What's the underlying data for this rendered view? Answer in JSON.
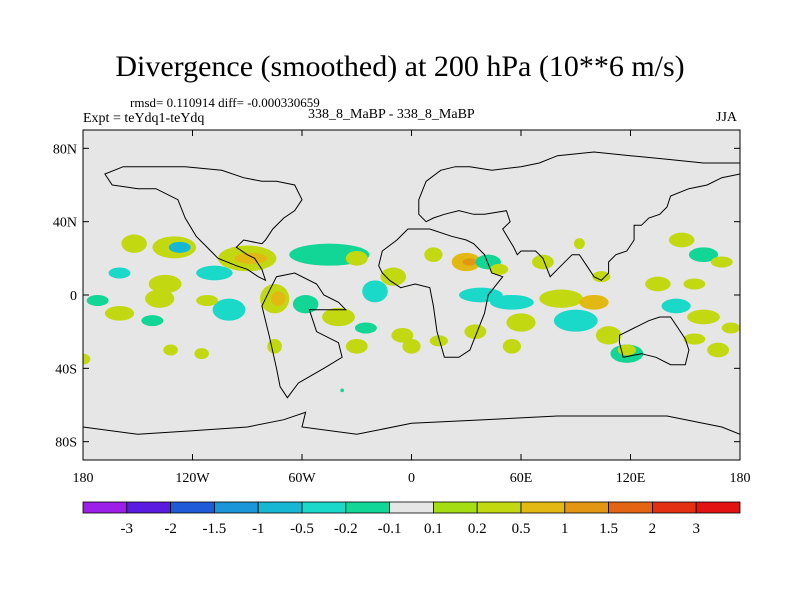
{
  "header": {
    "title": "Divergence (smoothed) at 200 hPa (10**6 m/s)",
    "stats": "rmsd= 0.110914 diff= -0.000330659",
    "experiment": "Expt = teYdq1-teYdq",
    "comparison": "338_8_MaBP - 338_8_MaBP",
    "season": "JJA"
  },
  "colors": {
    "background": "#e6e6e6",
    "coastline": "#000000",
    "levels": [
      "#9b1fe8",
      "#5b1ae0",
      "#1f5ad9",
      "#1a96d9",
      "#16b7d2",
      "#1ad9c8",
      "#12d695",
      "#e6e6e6",
      "#a4dd12",
      "#c2d912",
      "#e1b912",
      "#e39612",
      "#e36412",
      "#e33012",
      "#e31212"
    ]
  },
  "chart_data": {
    "type": "heatmap",
    "title": "Divergence (smoothed) at 200 hPa (10**6 m/s)",
    "xlabel": "",
    "ylabel": "",
    "xlim": [
      -180,
      180
    ],
    "ylim": [
      -90,
      90
    ],
    "x_ticks": [
      {
        "value": -180,
        "label": "180"
      },
      {
        "value": -120,
        "label": "120W"
      },
      {
        "value": -60,
        "label": "60W"
      },
      {
        "value": 0,
        "label": "0"
      },
      {
        "value": 60,
        "label": "60E"
      },
      {
        "value": 120,
        "label": "120E"
      },
      {
        "value": 180,
        "label": "180"
      }
    ],
    "y_ticks": [
      {
        "value": 80,
        "label": "80N"
      },
      {
        "value": 40,
        "label": "40N"
      },
      {
        "value": 0,
        "label": "0"
      },
      {
        "value": -40,
        "label": "40S"
      },
      {
        "value": -80,
        "label": "80S"
      }
    ],
    "contour_levels": [
      "-3",
      "-2",
      "-1.5",
      "-1",
      "-0.5",
      "-0.2",
      "-0.1",
      "0.1",
      "0.2",
      "0.5",
      "1",
      "1.5",
      "2",
      "3"
    ],
    "field_patches": [
      {
        "lon": -152,
        "lat": 28,
        "rlon": 7,
        "rlat": 5,
        "level": 9
      },
      {
        "lon": -130,
        "lat": 26,
        "rlon": 12,
        "rlat": 6,
        "level": 9
      },
      {
        "lon": -127,
        "lat": 26,
        "rlon": 6,
        "rlat": 3,
        "level": 4
      },
      {
        "lon": -108,
        "lat": 12,
        "rlon": 10,
        "rlat": 4,
        "level": 5
      },
      {
        "lon": -90,
        "lat": 20,
        "rlon": 16,
        "rlat": 7,
        "level": 9
      },
      {
        "lon": -88,
        "lat": 20,
        "rlon": 9,
        "rlat": 3,
        "level": 10
      },
      {
        "lon": -135,
        "lat": 6,
        "rlon": 9,
        "rlat": 5,
        "level": 9
      },
      {
        "lon": -172,
        "lat": -3,
        "rlon": 6,
        "rlat": 3,
        "level": 6
      },
      {
        "lon": -160,
        "lat": 12,
        "rlon": 6,
        "rlat": 3,
        "level": 5
      },
      {
        "lon": -160,
        "lat": -10,
        "rlon": 8,
        "rlat": 4,
        "level": 9
      },
      {
        "lon": -138,
        "lat": -2,
        "rlon": 8,
        "rlat": 5,
        "level": 9
      },
      {
        "lon": -142,
        "lat": -14,
        "rlon": 6,
        "rlat": 3,
        "level": 6
      },
      {
        "lon": -100,
        "lat": -8,
        "rlon": 9,
        "rlat": 6,
        "level": 5
      },
      {
        "lon": -112,
        "lat": -3,
        "rlon": 6,
        "rlat": 3,
        "level": 9
      },
      {
        "lon": -75,
        "lat": -2,
        "rlon": 8,
        "rlat": 8,
        "level": 9
      },
      {
        "lon": -73,
        "lat": -2,
        "rlon": 4,
        "rlat": 4,
        "level": 10
      },
      {
        "lon": -58,
        "lat": -5,
        "rlon": 7,
        "rlat": 5,
        "level": 6
      },
      {
        "lon": -45,
        "lat": 22,
        "rlon": 22,
        "rlat": 6,
        "level": 6
      },
      {
        "lon": -30,
        "lat": 20,
        "rlon": 6,
        "rlat": 4,
        "level": 9
      },
      {
        "lon": -10,
        "lat": 10,
        "rlon": 7,
        "rlat": 5,
        "level": 9
      },
      {
        "lon": -20,
        "lat": 2,
        "rlon": 7,
        "rlat": 6,
        "level": 5
      },
      {
        "lon": -40,
        "lat": -12,
        "rlon": 9,
        "rlat": 5,
        "level": 9
      },
      {
        "lon": -25,
        "lat": -18,
        "rlon": 6,
        "rlat": 3,
        "level": 6
      },
      {
        "lon": -5,
        "lat": -22,
        "rlon": 6,
        "rlat": 4,
        "level": 9
      },
      {
        "lon": -30,
        "lat": -28,
        "rlon": 6,
        "rlat": 4,
        "level": 9
      },
      {
        "lon": -180,
        "lat": -35,
        "rlon": 4,
        "rlat": 3,
        "level": 9
      },
      {
        "lon": -132,
        "lat": -30,
        "rlon": 4,
        "rlat": 3,
        "level": 9
      },
      {
        "lon": -115,
        "lat": -32,
        "rlon": 4,
        "rlat": 3,
        "level": 9
      },
      {
        "lon": -75,
        "lat": -28,
        "rlon": 4,
        "rlat": 4,
        "level": 9
      },
      {
        "lon": -38,
        "lat": -52,
        "rlon": 1,
        "rlat": 1,
        "level": 6
      },
      {
        "lon": 12,
        "lat": 22,
        "rlon": 5,
        "rlat": 4,
        "level": 9
      },
      {
        "lon": 30,
        "lat": 18,
        "rlon": 8,
        "rlat": 5,
        "level": 10
      },
      {
        "lon": 32,
        "lat": 18,
        "rlon": 4,
        "rlat": 2,
        "level": 11
      },
      {
        "lon": 42,
        "lat": 18,
        "rlon": 7,
        "rlat": 4,
        "level": 6
      },
      {
        "lon": 48,
        "lat": 14,
        "rlon": 5,
        "rlat": 3,
        "level": 9
      },
      {
        "lon": 38,
        "lat": 0,
        "rlon": 12,
        "rlat": 4,
        "level": 5
      },
      {
        "lon": 55,
        "lat": -4,
        "rlon": 12,
        "rlat": 4,
        "level": 5
      },
      {
        "lon": 82,
        "lat": -2,
        "rlon": 12,
        "rlat": 5,
        "level": 9
      },
      {
        "lon": 100,
        "lat": -4,
        "rlon": 8,
        "rlat": 4,
        "level": 10
      },
      {
        "lon": 90,
        "lat": -14,
        "rlon": 12,
        "rlat": 6,
        "level": 5
      },
      {
        "lon": 60,
        "lat": -15,
        "rlon": 8,
        "rlat": 5,
        "level": 9
      },
      {
        "lon": 35,
        "lat": -20,
        "rlon": 6,
        "rlat": 4,
        "level": 9
      },
      {
        "lon": 15,
        "lat": -25,
        "rlon": 5,
        "rlat": 3,
        "level": 9
      },
      {
        "lon": 0,
        "lat": -28,
        "rlon": 5,
        "rlat": 4,
        "level": 9
      },
      {
        "lon": 55,
        "lat": -28,
        "rlon": 5,
        "rlat": 4,
        "level": 9
      },
      {
        "lon": 72,
        "lat": 18,
        "rlon": 6,
        "rlat": 4,
        "level": 9
      },
      {
        "lon": 92,
        "lat": 28,
        "rlon": 3,
        "rlat": 3,
        "level": 9
      },
      {
        "lon": 104,
        "lat": 10,
        "rlon": 5,
        "rlat": 3,
        "level": 9
      },
      {
        "lon": 108,
        "lat": -22,
        "rlon": 7,
        "rlat": 5,
        "level": 9
      },
      {
        "lon": 118,
        "lat": -32,
        "rlon": 9,
        "rlat": 5,
        "level": 6
      },
      {
        "lon": 118,
        "lat": -30,
        "rlon": 5,
        "rlat": 3,
        "level": 9
      },
      {
        "lon": 135,
        "lat": 6,
        "rlon": 7,
        "rlat": 4,
        "level": 9
      },
      {
        "lon": 148,
        "lat": 30,
        "rlon": 7,
        "rlat": 4,
        "level": 9
      },
      {
        "lon": 160,
        "lat": 22,
        "rlon": 8,
        "rlat": 4,
        "level": 6
      },
      {
        "lon": 170,
        "lat": 18,
        "rlon": 6,
        "rlat": 3,
        "level": 9
      },
      {
        "lon": 155,
        "lat": 6,
        "rlon": 6,
        "rlat": 3,
        "level": 9
      },
      {
        "lon": 145,
        "lat": -6,
        "rlon": 8,
        "rlat": 4,
        "level": 5
      },
      {
        "lon": 160,
        "lat": -12,
        "rlon": 9,
        "rlat": 4,
        "level": 9
      },
      {
        "lon": 155,
        "lat": -24,
        "rlon": 6,
        "rlat": 3,
        "level": 9
      },
      {
        "lon": 175,
        "lat": -18,
        "rlon": 5,
        "rlat": 3,
        "level": 9
      },
      {
        "lon": 168,
        "lat": -30,
        "rlon": 6,
        "rlat": 4,
        "level": 9
      }
    ],
    "coastlines": [
      [
        [
          -56,
          -8
        ],
        [
          -52,
          -20
        ],
        [
          -40,
          -26
        ],
        [
          -38,
          -34
        ],
        [
          -48,
          -40
        ],
        [
          -62,
          -48
        ],
        [
          -68,
          -56
        ],
        [
          -72,
          -50
        ],
        [
          -74,
          -40
        ],
        [
          -78,
          -22
        ],
        [
          -82,
          -6
        ],
        [
          -78,
          2
        ],
        [
          -74,
          10
        ],
        [
          -64,
          12
        ],
        [
          -52,
          6
        ],
        [
          -48,
          0
        ],
        [
          -40,
          -4
        ],
        [
          -36,
          -8
        ]
      ],
      [
        [
          -18,
          16
        ],
        [
          -16,
          24
        ],
        [
          -8,
          30
        ],
        [
          -2,
          36
        ],
        [
          10,
          36
        ],
        [
          22,
          32
        ],
        [
          30,
          30
        ],
        [
          34,
          28
        ],
        [
          40,
          22
        ],
        [
          44,
          12
        ],
        [
          50,
          10
        ],
        [
          42,
          0
        ],
        [
          40,
          -10
        ],
        [
          36,
          -20
        ],
        [
          32,
          -30
        ],
        [
          26,
          -34
        ],
        [
          18,
          -34
        ],
        [
          14,
          -20
        ],
        [
          12,
          -6
        ],
        [
          10,
          4
        ],
        [
          2,
          6
        ],
        [
          -6,
          4
        ],
        [
          -12,
          8
        ],
        [
          -16,
          12
        ]
      ],
      [
        [
          -164,
          60
        ],
        [
          -150,
          58
        ],
        [
          -140,
          58
        ],
        [
          -128,
          52
        ],
        [
          -124,
          42
        ],
        [
          -118,
          32
        ],
        [
          -110,
          24
        ],
        [
          -106,
          20
        ],
        [
          -96,
          16
        ],
        [
          -90,
          14
        ],
        [
          -84,
          10
        ],
        [
          -80,
          8
        ],
        [
          -82,
          14
        ],
        [
          -86,
          20
        ],
        [
          -90,
          22
        ],
        [
          -96,
          26
        ],
        [
          -92,
          30
        ],
        [
          -82,
          28
        ],
        [
          -80,
          30
        ],
        [
          -76,
          36
        ],
        [
          -70,
          42
        ],
        [
          -64,
          46
        ],
        [
          -60,
          52
        ],
        [
          -64,
          60
        ],
        [
          -74,
          62
        ],
        [
          -82,
          62
        ],
        [
          -92,
          64
        ],
        [
          -104,
          68
        ],
        [
          -124,
          70
        ],
        [
          -144,
          70
        ],
        [
          -158,
          70
        ],
        [
          -168,
          66
        ]
      ],
      [
        [
          8,
          40
        ],
        [
          12,
          42
        ],
        [
          18,
          44
        ],
        [
          26,
          46
        ],
        [
          34,
          44
        ],
        [
          40,
          44
        ],
        [
          52,
          46
        ],
        [
          54,
          40
        ],
        [
          50,
          36
        ],
        [
          56,
          26
        ],
        [
          58,
          22
        ],
        [
          60,
          24
        ],
        [
          68,
          24
        ],
        [
          72,
          20
        ],
        [
          76,
          10
        ],
        [
          80,
          14
        ],
        [
          82,
          16
        ],
        [
          88,
          22
        ],
        [
          92,
          22
        ],
        [
          96,
          16
        ],
        [
          100,
          10
        ],
        [
          104,
          8
        ],
        [
          108,
          12
        ],
        [
          108,
          18
        ],
        [
          112,
          22
        ],
        [
          118,
          24
        ],
        [
          122,
          30
        ],
        [
          122,
          38
        ],
        [
          126,
          38
        ],
        [
          130,
          42
        ],
        [
          136,
          44
        ],
        [
          140,
          48
        ],
        [
          142,
          54
        ],
        [
          152,
          58
        ],
        [
          162,
          60
        ],
        [
          170,
          64
        ],
        [
          180,
          66
        ],
        [
          180,
          72
        ],
        [
          160,
          72
        ],
        [
          140,
          74
        ],
        [
          120,
          76
        ],
        [
          100,
          78
        ],
        [
          80,
          76
        ],
        [
          70,
          72
        ],
        [
          60,
          70
        ],
        [
          44,
          68
        ],
        [
          32,
          70
        ],
        [
          24,
          70
        ],
        [
          16,
          68
        ],
        [
          8,
          62
        ],
        [
          4,
          52
        ],
        [
          4,
          44
        ]
      ],
      [
        [
          114,
          -22
        ],
        [
          122,
          -18
        ],
        [
          130,
          -14
        ],
        [
          136,
          -12
        ],
        [
          142,
          -12
        ],
        [
          146,
          -18
        ],
        [
          150,
          -24
        ],
        [
          152,
          -30
        ],
        [
          150,
          -38
        ],
        [
          142,
          -38
        ],
        [
          134,
          -34
        ],
        [
          126,
          -32
        ],
        [
          116,
          -34
        ],
        [
          114,
          -26
        ]
      ],
      [
        [
          -180,
          -72
        ],
        [
          -150,
          -76
        ],
        [
          -120,
          -74
        ],
        [
          -90,
          -72
        ],
        [
          -70,
          -68
        ],
        [
          -58,
          -64
        ],
        [
          -60,
          -72
        ],
        [
          -30,
          -76
        ],
        [
          0,
          -70
        ],
        [
          40,
          -68
        ],
        [
          80,
          -66
        ],
        [
          110,
          -66
        ],
        [
          140,
          -66
        ],
        [
          170,
          -72
        ],
        [
          180,
          -76
        ],
        [
          180,
          -90
        ],
        [
          -180,
          -90
        ]
      ]
    ]
  }
}
